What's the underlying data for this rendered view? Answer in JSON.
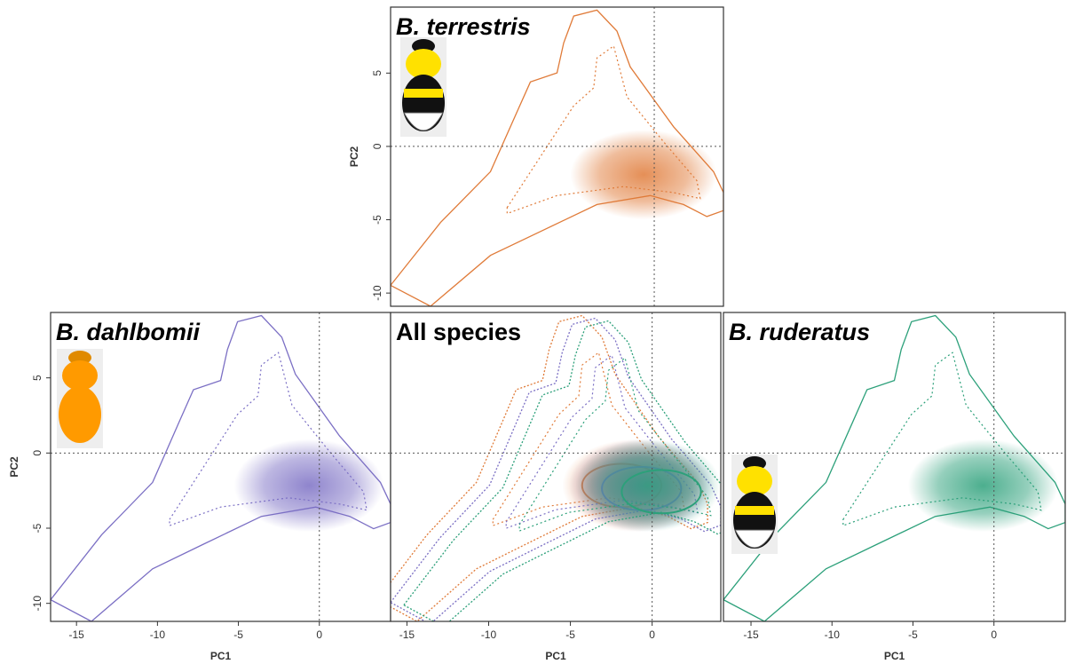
{
  "chart_data": [
    {
      "type": "contour",
      "title": "B. terrestris",
      "ylabel": "PC2",
      "color": "#e07b39",
      "xlim": [
        -16,
        4.2
      ],
      "ylim": [
        -10.9,
        9.5
      ],
      "yticks": [
        5,
        0,
        -5,
        -10
      ]
    },
    {
      "type": "contour",
      "title": "B. dahlbomii",
      "xlabel": "PC1",
      "ylabel": "PC2",
      "color": "#7b6fc4",
      "xlim": [
        -16.6,
        4.4
      ],
      "ylim": [
        -11.2,
        9.35
      ],
      "xticks": [
        -15,
        -10,
        -5,
        0
      ],
      "yticks": [
        5,
        0,
        -5,
        -10
      ]
    },
    {
      "type": "contour",
      "title": "All species",
      "xlabel": "PC1",
      "colors": [
        "#e07b39",
        "#7b6fc4",
        "#2ca07a"
      ],
      "xlim": [
        -16,
        4.2
      ],
      "ylim": [
        -11.2,
        9.35
      ],
      "xticks": [
        -15,
        -10,
        -5,
        0
      ]
    },
    {
      "type": "contour",
      "title": "B. ruderatus",
      "xlabel": "PC1",
      "color": "#2ca07a",
      "xlim": [
        -16.7,
        4.4
      ],
      "ylim": [
        -11.2,
        9.35
      ],
      "xticks": [
        -15,
        -10,
        -5,
        0
      ]
    }
  ]
}
